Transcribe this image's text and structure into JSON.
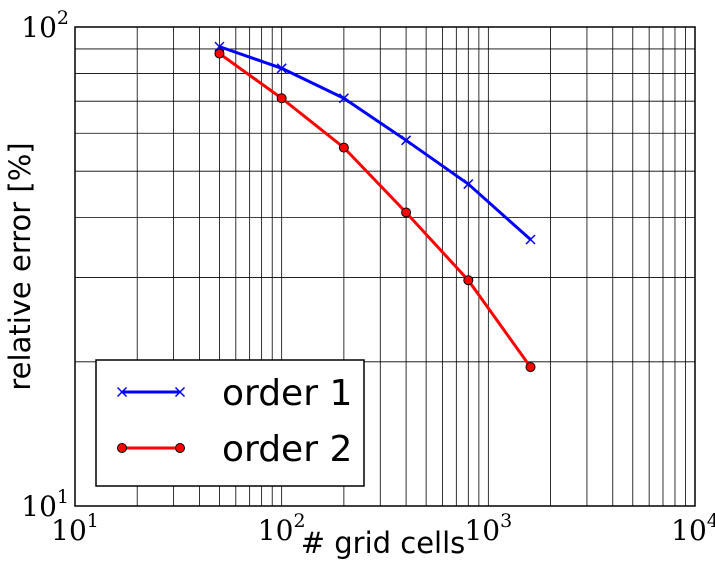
{
  "chart_data": {
    "type": "line",
    "title": "",
    "xlabel": "# grid cells",
    "ylabel": "relative error [%]",
    "xscale": "log",
    "yscale": "log",
    "xlim": [
      10,
      10000
    ],
    "ylim": [
      10,
      100
    ],
    "grid": true,
    "legend_position": "bottom-left",
    "x_tick_labels": [
      {
        "value": 10,
        "base": "10",
        "exp": "1"
      },
      {
        "value": 100,
        "base": "10",
        "exp": "2"
      },
      {
        "value": 1000,
        "base": "10",
        "exp": "3"
      },
      {
        "value": 10000,
        "base": "10",
        "exp": "4"
      }
    ],
    "y_tick_labels": [
      {
        "value": 10,
        "base": "10",
        "exp": "1"
      },
      {
        "value": 100,
        "base": "10",
        "exp": "2"
      }
    ],
    "series": [
      {
        "name": "order 1",
        "color": "#0000ff",
        "marker": "x",
        "x": [
          50,
          100,
          200,
          400,
          800,
          1600
        ],
        "y": [
          91,
          82,
          71,
          58,
          47,
          36
        ]
      },
      {
        "name": "order 2",
        "color": "#ff0000",
        "marker": "circle",
        "x": [
          50,
          100,
          200,
          400,
          800,
          1600
        ],
        "y": [
          88,
          71,
          56,
          41,
          29.6,
          19.5
        ]
      }
    ]
  }
}
